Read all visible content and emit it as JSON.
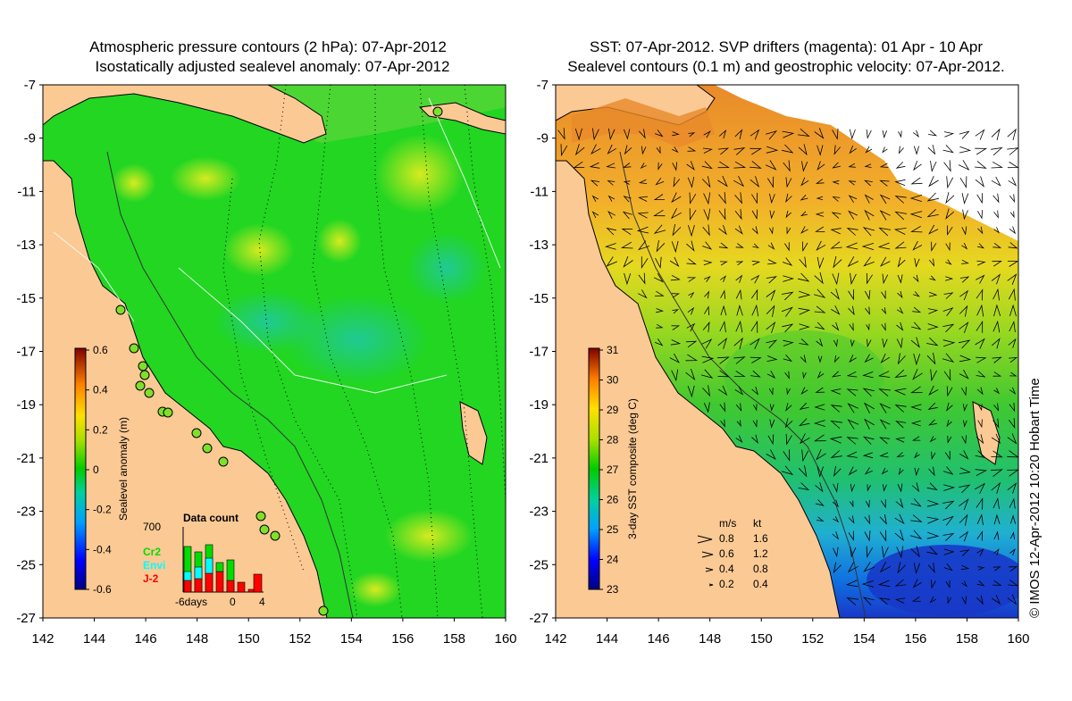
{
  "left_panel": {
    "title_line1": "Atmospheric pressure contours (2 hPa): 07-Apr-2012",
    "title_line2": "Isostatically adjusted sealevel anomaly: 07-Apr-2012",
    "colorbar": {
      "label": "Sealevel anomaly (m)",
      "ticks": [
        "0.6",
        "0.4",
        "0.2",
        "0",
        "-0.2",
        "-0.4",
        "-0.6"
      ]
    },
    "data_count": {
      "title": "Data count",
      "max_label": "700",
      "legend": [
        {
          "label": "Cr2",
          "color": "#00dd00"
        },
        {
          "label": "Envi",
          "color": "#00ffff"
        },
        {
          "label": "J-2",
          "color": "#ff0000"
        }
      ],
      "x_ticks": [
        "-6days",
        "0",
        "4"
      ]
    }
  },
  "right_panel": {
    "title_line1": "SST: 07-Apr-2012. SVP drifters (magenta): 01 Apr - 10 Apr",
    "title_line2": "Sealevel contours (0.1 m) and geostrophic velocity: 07-Apr-2012.",
    "colorbar": {
      "label": "3-day SST composite (deg C)",
      "ticks": [
        "31",
        "30",
        "29",
        "28",
        "27",
        "26",
        "25",
        "24",
        "23"
      ]
    },
    "velocity_legend": {
      "header_ms": "m/s",
      "header_kt": "kt",
      "rows": [
        {
          "ms": "0.8",
          "kt": "1.6"
        },
        {
          "ms": "0.6",
          "kt": "1.2"
        },
        {
          "ms": "0.4",
          "kt": "0.8"
        },
        {
          "ms": "0.2",
          "kt": "0.4"
        }
      ]
    }
  },
  "axes": {
    "lat_ticks": [
      "-7",
      "-9",
      "-11",
      "-13",
      "-15",
      "-17",
      "-19",
      "-21",
      "-23",
      "-25",
      "-27"
    ],
    "lon_ticks": [
      "142",
      "144",
      "146",
      "148",
      "150",
      "152",
      "154",
      "156",
      "158",
      "160"
    ]
  },
  "copyright": "© IMOS 12-Apr-2012 10:20 Hobart Time",
  "colors": {
    "land": "#fbc994",
    "sla_green": "#22d622",
    "sst_orange": "#e8862a"
  }
}
